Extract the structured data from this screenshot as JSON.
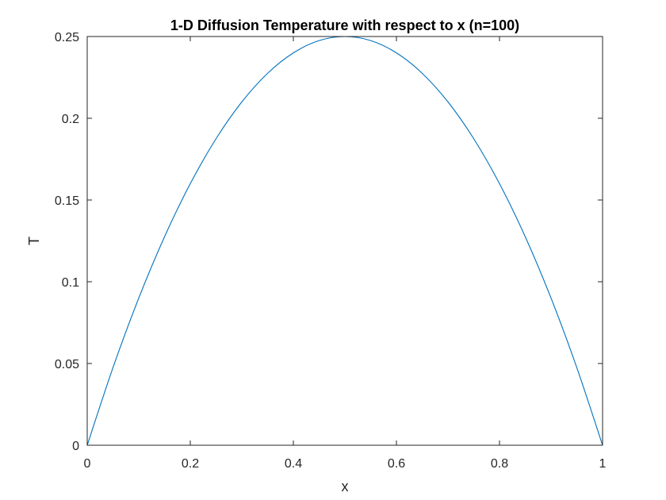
{
  "chart_data": {
    "type": "line",
    "title": "1-D Diffusion Temperature with respect to x (n=100)",
    "xlabel": "x",
    "ylabel": "T",
    "xlim": [
      0,
      1
    ],
    "ylim": [
      0,
      0.25
    ],
    "xticks": [
      "0",
      "0.2",
      "0.4",
      "0.6",
      "0.8",
      "1"
    ],
    "yticks": [
      "0",
      "0.05",
      "0.1",
      "0.15",
      "0.2",
      "0.25"
    ],
    "grid": false,
    "legend": "none",
    "series": [
      {
        "color": "#0072BD",
        "x": [
          0,
          0.05,
          0.1,
          0.15,
          0.2,
          0.25,
          0.3,
          0.35,
          0.4,
          0.45,
          0.5,
          0.55,
          0.6,
          0.65,
          0.7,
          0.75,
          0.8,
          0.85,
          0.9,
          0.95,
          1
        ],
        "y": [
          0,
          0.0475,
          0.09,
          0.1275,
          0.16,
          0.1875,
          0.21,
          0.2275,
          0.24,
          0.2475,
          0.25,
          0.2475,
          0.24,
          0.2275,
          0.21,
          0.1875,
          0.16,
          0.1275,
          0.09,
          0.0475,
          0
        ]
      }
    ]
  }
}
